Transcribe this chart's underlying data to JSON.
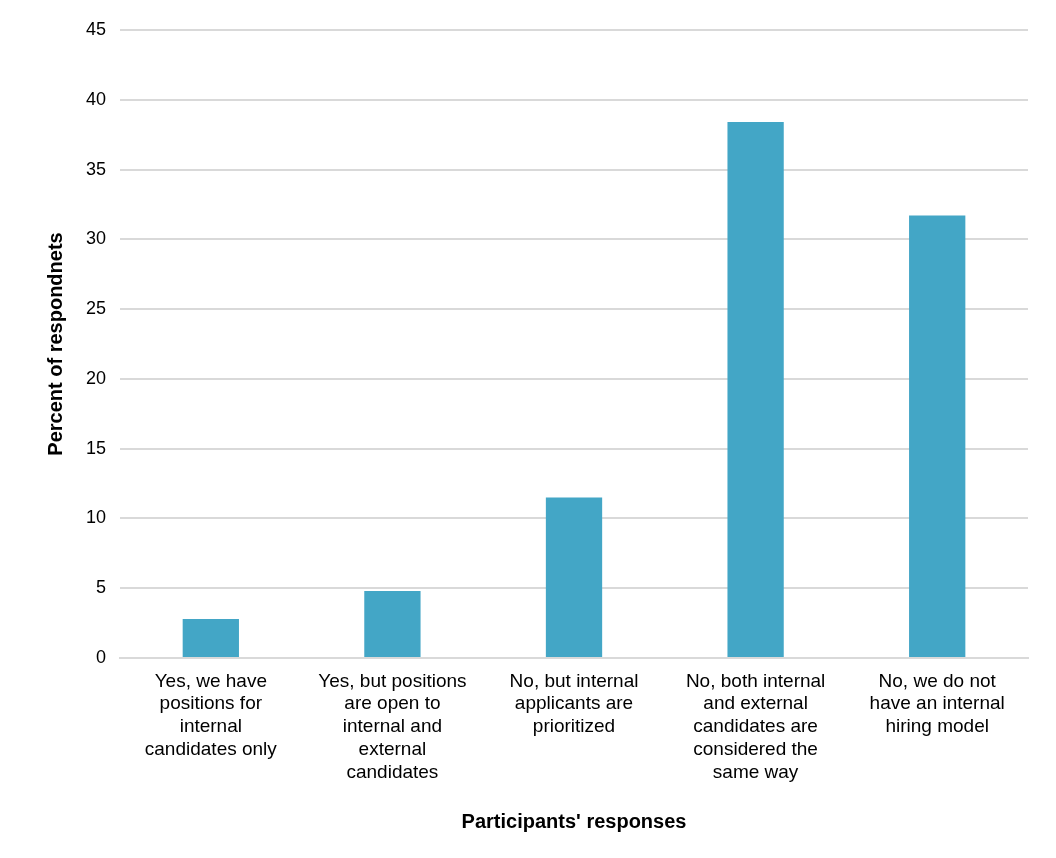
{
  "chart_data": {
    "type": "bar",
    "xlabel": "Participants' responses",
    "ylabel": "Percent of respondnets",
    "categories": [
      "Yes, we have positions for internal candidates only",
      "Yes, but positions are open to internal and external candidates",
      "No, but internal applicants are prioritized",
      "No, both internal and external candidates are considered the same way",
      "No, we do not have an internal hiring model"
    ],
    "values": [
      2.8,
      4.8,
      11.5,
      38.4,
      31.7
    ],
    "color": "#43a6c6",
    "ylim": [
      0,
      45
    ],
    "yticks": [
      0,
      5,
      10,
      15,
      20,
      25,
      30,
      35,
      40,
      45
    ],
    "grid": "y",
    "legend": false
  }
}
